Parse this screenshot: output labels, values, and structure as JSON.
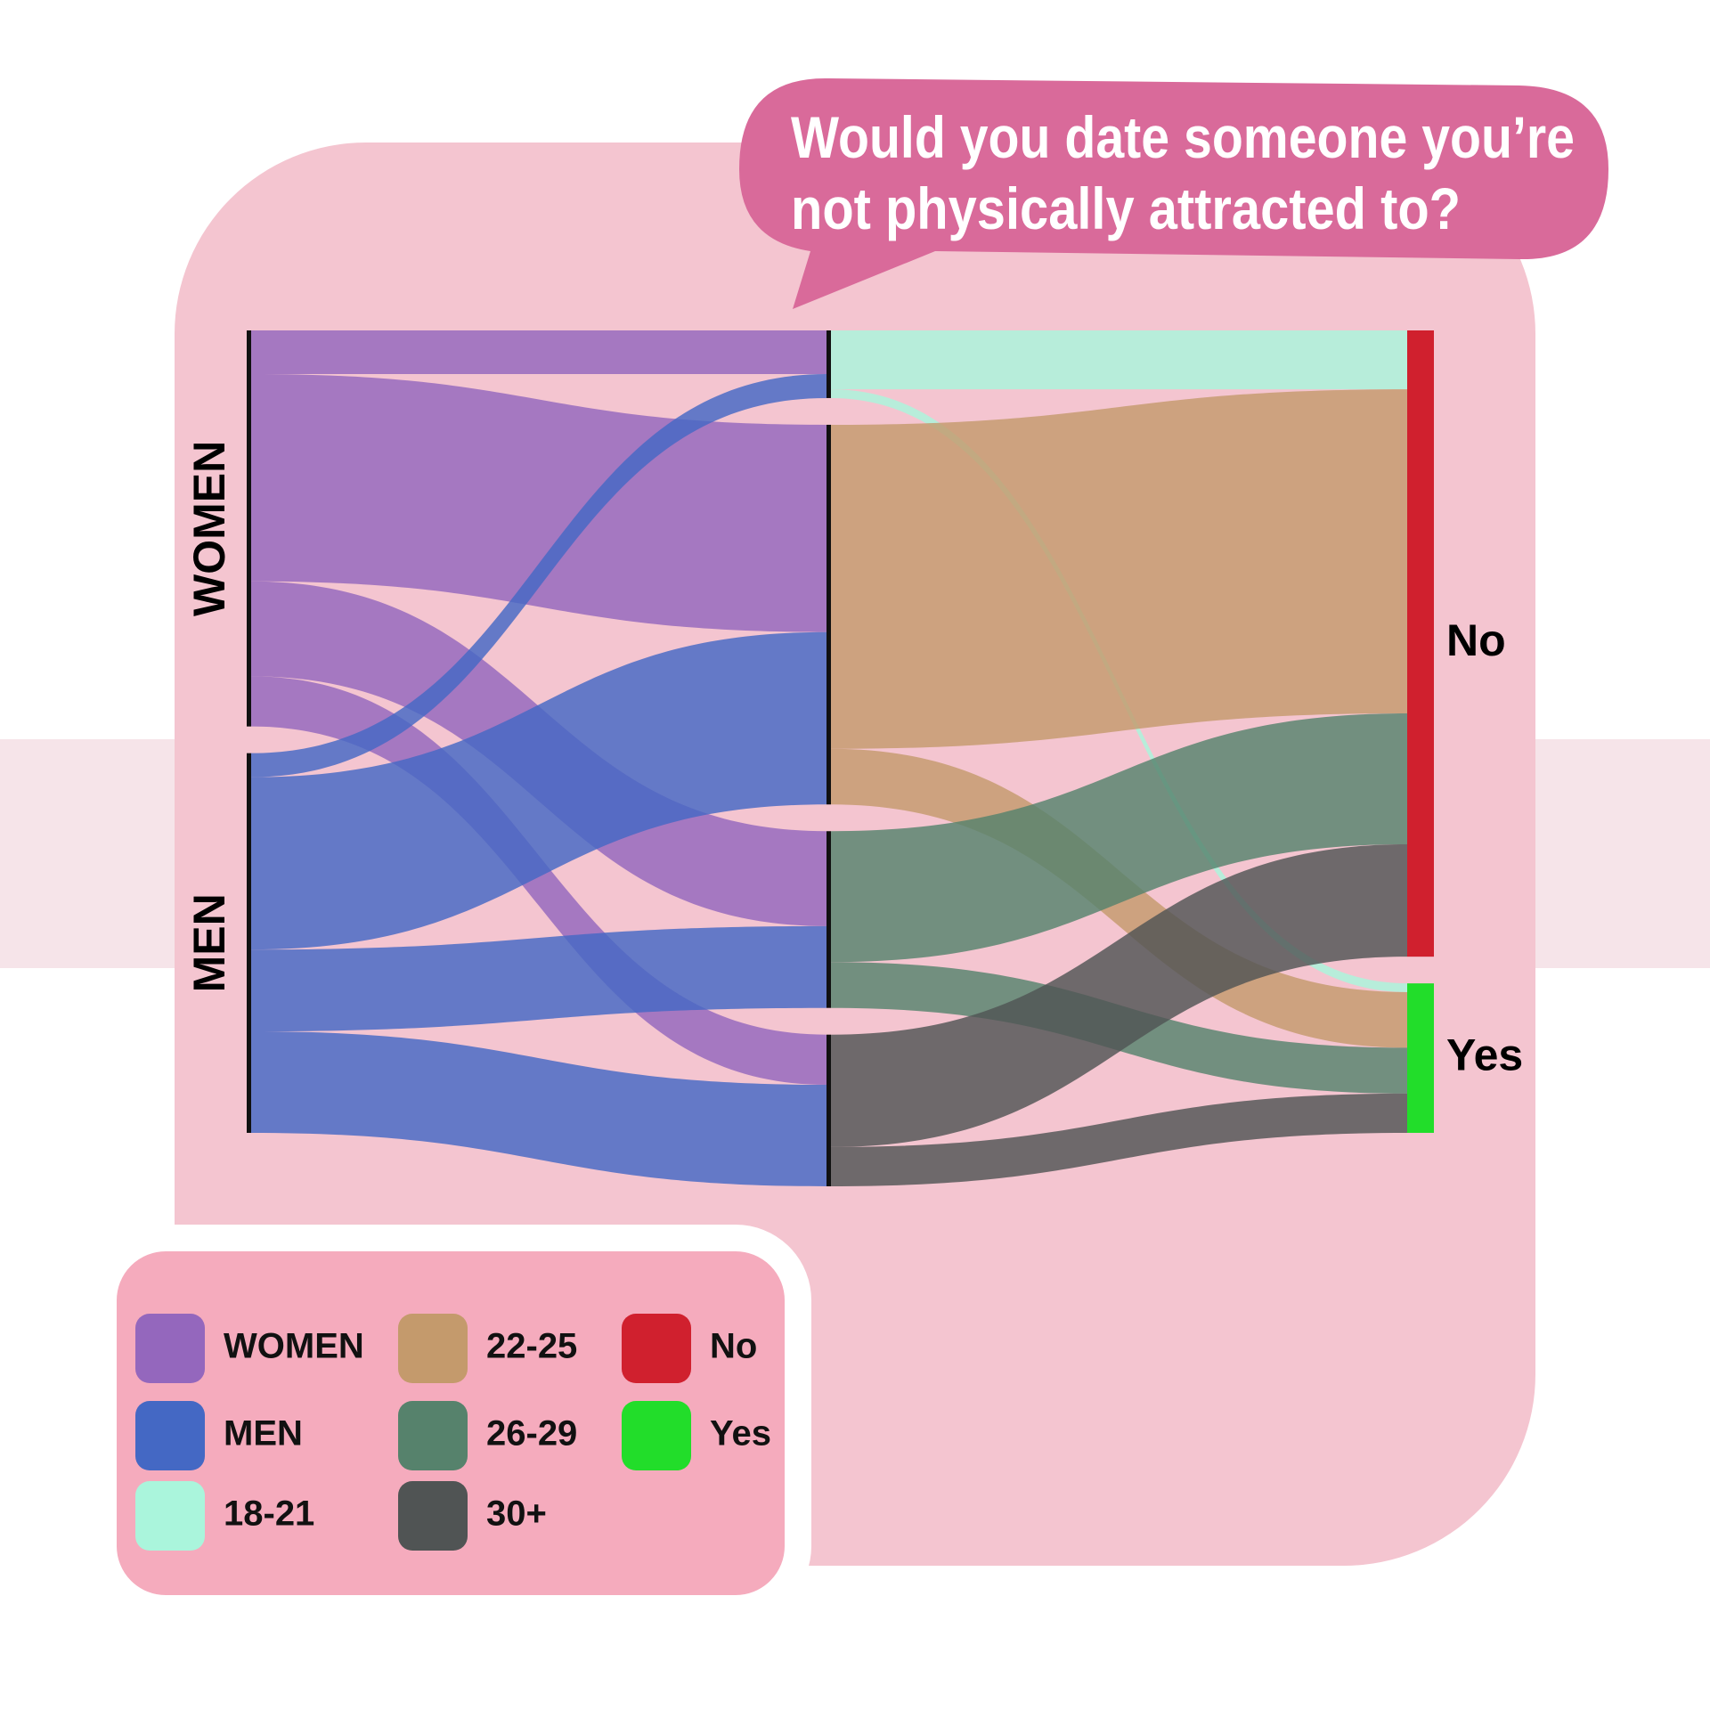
{
  "chart_data": {
    "type": "sankey",
    "title": [
      "Would you date someone you’re",
      "not physically attracted to?"
    ],
    "nodes": [
      {
        "name": "WOMEN",
        "color": "#9467bd"
      },
      {
        "name": "MEN",
        "color": "#4468c4"
      },
      {
        "name": "18-21",
        "color": "#aaf5dc"
      },
      {
        "name": "22-25",
        "color": "#c49a6c"
      },
      {
        "name": "26-29",
        "color": "#56826c"
      },
      {
        "name": "30+",
        "color": "#505454"
      },
      {
        "name": "No",
        "color": "#d0202e"
      },
      {
        "name": "Yes",
        "color": "#22dd2a"
      }
    ],
    "links": [
      {
        "source": 0,
        "target": 2,
        "value": 40
      },
      {
        "source": 0,
        "target": 3,
        "value": 190
      },
      {
        "source": 0,
        "target": 4,
        "value": 87
      },
      {
        "source": 0,
        "target": 5,
        "value": 46
      },
      {
        "source": 1,
        "target": 2,
        "value": 22
      },
      {
        "source": 1,
        "target": 3,
        "value": 158
      },
      {
        "source": 1,
        "target": 4,
        "value": 75
      },
      {
        "source": 1,
        "target": 5,
        "value": 93
      },
      {
        "source": 2,
        "target": 6,
        "value": 54
      },
      {
        "source": 2,
        "target": 7,
        "value": 8
      },
      {
        "source": 3,
        "target": 6,
        "value": 297
      },
      {
        "source": 3,
        "target": 7,
        "value": 51
      },
      {
        "source": 4,
        "target": 6,
        "value": 120
      },
      {
        "source": 4,
        "target": 7,
        "value": 42
      },
      {
        "source": 5,
        "target": 6,
        "value": 103
      },
      {
        "source": 5,
        "target": 7,
        "value": 36
      }
    ]
  }
}
